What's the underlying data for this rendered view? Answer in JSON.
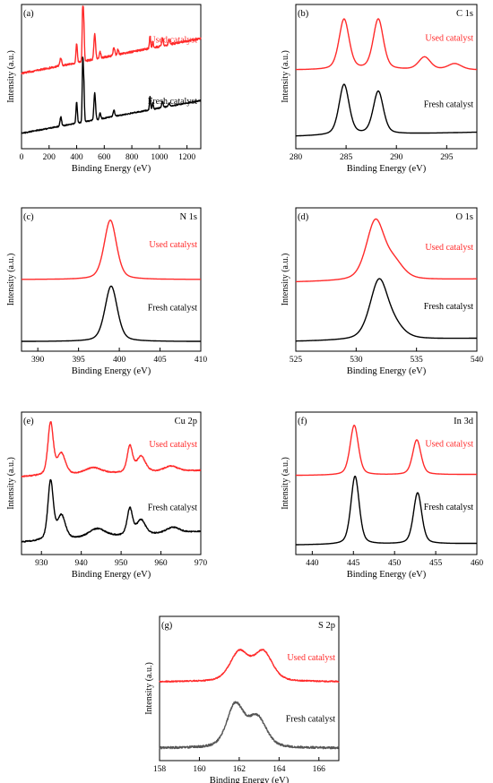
{
  "colors": {
    "used": "#ff2a2a",
    "fresh": "#000000",
    "fresh_s2p": "#555555",
    "axis": "#000000"
  },
  "chart_data": [
    {
      "type": "line",
      "panel_label": "(a)",
      "element_label": "",
      "xlabel": "Binding Energy (eV)",
      "ylabel": "Intensity (a.u.)",
      "xlim": [
        0,
        1300
      ],
      "xticks": [
        0,
        200,
        400,
        600,
        800,
        1000,
        1200
      ],
      "series": [
        {
          "name": "Used catalyst",
          "baseline": 0.5,
          "amp": 0.48,
          "peaks": [
            [
              285,
              0.12,
              6
            ],
            [
              400,
              0.3,
              5
            ],
            [
              444,
              0.9,
              4
            ],
            [
              452,
              0.55,
              4
            ],
            [
              531,
              0.4,
              6
            ],
            [
              570,
              0.1,
              5
            ],
            [
              670,
              0.12,
              6
            ],
            [
              700,
              0.08,
              5
            ],
            [
              932,
              0.2,
              4
            ],
            [
              952,
              0.1,
              4
            ],
            [
              1022,
              0.12,
              5
            ],
            [
              1070,
              0.08,
              5
            ]
          ],
          "bg": "survey",
          "noise": 0.03,
          "tail": 0.55
        },
        {
          "name": "Fresh catalyst",
          "baseline": 0.05,
          "amp": 0.45,
          "peaks": [
            [
              285,
              0.15,
              6
            ],
            [
              400,
              0.35,
              5
            ],
            [
              444,
              1.0,
              4
            ],
            [
              452,
              0.6,
              4
            ],
            [
              531,
              0.45,
              6
            ],
            [
              570,
              0.1,
              5
            ],
            [
              670,
              0.1,
              6
            ],
            [
              932,
              0.22,
              4
            ],
            [
              952,
              0.12,
              4
            ],
            [
              1022,
              0.1,
              5
            ],
            [
              1070,
              0.06,
              5
            ]
          ],
          "bg": "survey",
          "noise": 0.02,
          "tail": 0.55
        }
      ]
    },
    {
      "type": "line",
      "panel_label": "(b)",
      "element_label": "C 1s",
      "xlabel": "Binding Energy (eV)",
      "ylabel": "Intensity (a.u.)",
      "xlim": [
        280,
        298
      ],
      "xticks": [
        280,
        285,
        290,
        295
      ],
      "series": [
        {
          "name": "Used catalyst",
          "baseline": 0.55,
          "amp": 0.38,
          "peaks": [
            [
              284.8,
              1.0,
              0.6
            ],
            [
              288.2,
              1.0,
              0.6
            ],
            [
              292.8,
              0.25,
              0.7
            ],
            [
              295.8,
              0.12,
              0.8
            ]
          ],
          "bg": "flat",
          "noise": 0.0,
          "tail": 0.0
        },
        {
          "name": "Fresh catalyst",
          "baseline": 0.05,
          "amp": 0.38,
          "peaks": [
            [
              284.8,
              1.0,
              0.6
            ],
            [
              288.2,
              0.85,
              0.6
            ]
          ],
          "bg": "flat",
          "noise": 0.0,
          "tail": 0.08
        }
      ]
    },
    {
      "type": "line",
      "panel_label": "(c)",
      "element_label": "N 1s",
      "xlabel": "Binding Energy (eV)",
      "ylabel": "Intensity (a.u.)",
      "xlim": [
        388,
        410
      ],
      "xticks": [
        390,
        395,
        400,
        405,
        410
      ],
      "series": [
        {
          "name": "Used catalyst",
          "baseline": 0.5,
          "amp": 0.45,
          "peaks": [
            [
              398.9,
              1.0,
              0.9
            ]
          ],
          "bg": "flat",
          "noise": 0.0,
          "tail": 0.0
        },
        {
          "name": "Fresh catalyst",
          "baseline": 0.03,
          "amp": 0.42,
          "peaks": [
            [
              399.0,
              1.0,
              0.9
            ]
          ],
          "bg": "flat",
          "noise": 0.0,
          "tail": 0.0
        }
      ]
    },
    {
      "type": "line",
      "panel_label": "(d)",
      "element_label": "O 1s",
      "xlabel": "Binding Energy (eV)",
      "ylabel": "Intensity (a.u.)",
      "xlim": [
        525,
        540
      ],
      "xticks": [
        525,
        530,
        535,
        540
      ],
      "series": [
        {
          "name": "Used catalyst",
          "baseline": 0.48,
          "amp": 0.45,
          "peaks": [
            [
              531.6,
              1.0,
              0.9
            ],
            [
              533.2,
              0.25,
              0.9
            ]
          ],
          "bg": "flat",
          "noise": 0.0,
          "tail": 0.05
        },
        {
          "name": "Fresh catalyst",
          "baseline": 0.03,
          "amp": 0.45,
          "peaks": [
            [
              531.9,
              1.0,
              0.9
            ],
            [
              533.3,
              0.15,
              0.9
            ]
          ],
          "bg": "flat",
          "noise": 0.0,
          "tail": 0.05
        }
      ]
    },
    {
      "type": "line",
      "panel_label": "(e)",
      "element_label": "Cu 2p",
      "xlabel": "Binding Energy (eV)",
      "ylabel": "Intensity (a.u.)",
      "xlim": [
        925,
        970
      ],
      "xticks": [
        930,
        940,
        950,
        960,
        970
      ],
      "series": [
        {
          "name": "Used catalyst",
          "baseline": 0.55,
          "amp": 0.4,
          "peaks": [
            [
              932.3,
              1.0,
              0.8
            ],
            [
              935,
              0.4,
              1.2
            ],
            [
              943,
              0.12,
              2.5
            ],
            [
              952.2,
              0.5,
              0.8
            ],
            [
              955,
              0.3,
              1.3
            ],
            [
              962.5,
              0.1,
              2.0
            ]
          ],
          "bg": "flat",
          "noise": 0.02,
          "tail": 0.12
        },
        {
          "name": "Fresh catalyst",
          "baseline": 0.05,
          "amp": 0.45,
          "peaks": [
            [
              932.3,
              1.0,
              0.8
            ],
            [
              935,
              0.4,
              1.2
            ],
            [
              944,
              0.15,
              2.5
            ],
            [
              952.2,
              0.45,
              0.8
            ],
            [
              955,
              0.25,
              1.3
            ],
            [
              963,
              0.1,
              2.0
            ]
          ],
          "bg": "flat",
          "noise": 0.02,
          "tail": 0.18
        }
      ]
    },
    {
      "type": "line",
      "panel_label": "(f)",
      "element_label": "In 3d",
      "xlabel": "Binding Energy (eV)",
      "ylabel": "Intensity (a.u.)",
      "xlim": [
        438,
        460
      ],
      "xticks": [
        440,
        445,
        450,
        455,
        460
      ],
      "series": [
        {
          "name": "Used catalyst",
          "baseline": 0.56,
          "amp": 0.38,
          "peaks": [
            [
              445.1,
              1.0,
              0.6
            ],
            [
              452.7,
              0.7,
              0.6
            ]
          ],
          "bg": "flat",
          "noise": 0.0,
          "tail": 0.02
        },
        {
          "name": "Fresh catalyst",
          "baseline": 0.03,
          "amp": 0.52,
          "peaks": [
            [
              445.2,
              1.0,
              0.6
            ],
            [
              452.8,
              0.75,
              0.6
            ]
          ],
          "bg": "flat",
          "noise": 0.0,
          "tail": 0.02
        }
      ]
    },
    {
      "type": "line",
      "panel_label": "(g)",
      "element_label": "S 2p",
      "xlabel": "Binding Energy (eV)",
      "ylabel": "Intensity (a.u.)",
      "xlim": [
        158,
        167
      ],
      "xticks": [
        158,
        160,
        162,
        164,
        166
      ],
      "series": [
        {
          "name": "Used catalyst",
          "baseline": 0.55,
          "amp": 0.22,
          "peaks": [
            [
              162.0,
              1.0,
              0.55
            ],
            [
              163.2,
              1.0,
              0.55
            ]
          ],
          "bg": "flat",
          "noise": 0.04,
          "tail": 0.0
        },
        {
          "name": "Fresh catalyst",
          "baseline": 0.05,
          "amp": 0.32,
          "peaks": [
            [
              161.8,
              1.0,
              0.5
            ],
            [
              162.9,
              0.7,
              0.55
            ]
          ],
          "bg": "flat",
          "noise": 0.05,
          "tail": 0.0
        }
      ]
    }
  ]
}
